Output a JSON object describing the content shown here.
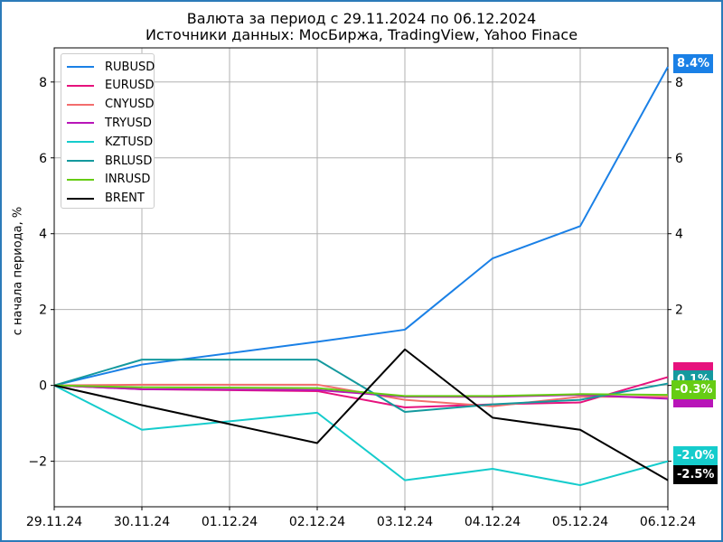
{
  "title_line1": "Валюта за период с 29.11.2024 по 06.12.2024",
  "title_line2": "Источники данных: МосБиржа, TradingView, Yahoo Finace",
  "ylabel": "с начала периода, %",
  "chart_data": {
    "type": "line",
    "title": "Валюта за период с 29.11.2024 по 06.12.2024",
    "subtitle": "Источники данных: МосБиржа, TradingView, Yahoo Finace",
    "ylabel": "с начала периода, %",
    "categories": [
      "29.11.24",
      "30.11.24",
      "01.12.24",
      "02.12.24",
      "03.12.24",
      "04.12.24",
      "05.12.24",
      "06.12.24"
    ],
    "ylim": [
      -3.2,
      8.9
    ],
    "yticks": [
      -2,
      0,
      2,
      4,
      6,
      8
    ],
    "ytick_labels": [
      "−2",
      "0",
      "2",
      "4",
      "6",
      "8"
    ],
    "grid": true,
    "legend_position": "top-left",
    "series": [
      {
        "name": "RUBUSD",
        "color": "#1a80e6",
        "values": [
          0,
          0.55,
          null,
          1.15,
          1.47,
          3.35,
          4.2,
          8.4
        ]
      },
      {
        "name": "EURUSD",
        "color": "#e6127d",
        "values": [
          0,
          -0.1,
          null,
          -0.15,
          -0.58,
          -0.5,
          -0.45,
          0.22
        ]
      },
      {
        "name": "CNYUSD",
        "color": "#f36d6d",
        "values": [
          0,
          0.02,
          null,
          0.02,
          -0.38,
          -0.55,
          -0.3,
          -0.3
        ]
      },
      {
        "name": "TRYUSD",
        "color": "#b815b8",
        "values": [
          0,
          -0.1,
          null,
          -0.12,
          -0.3,
          -0.3,
          -0.25,
          -0.35
        ]
      },
      {
        "name": "KZTUSD",
        "color": "#15cccc",
        "values": [
          0,
          -1.17,
          null,
          -0.72,
          -2.5,
          -2.2,
          -2.63,
          -2.0
        ]
      },
      {
        "name": "BRLUSD",
        "color": "#14999e",
        "values": [
          0,
          0.68,
          null,
          0.68,
          -0.7,
          -0.5,
          -0.38,
          0.05
        ]
      },
      {
        "name": "INRUSD",
        "color": "#66cc14",
        "values": [
          0,
          -0.05,
          null,
          -0.07,
          -0.28,
          -0.28,
          -0.23,
          -0.25
        ]
      },
      {
        "name": "BRENT",
        "color": "#000000",
        "values": [
          0,
          -0.52,
          null,
          -1.52,
          0.95,
          -0.85,
          -1.17,
          -2.5
        ]
      }
    ],
    "badges": [
      {
        "label": "8.4%",
        "color": "#1a80e6",
        "value": 8.4
      },
      {
        "label": "0.1%",
        "color": "#14999e",
        "value": 0.1
      },
      {
        "label": "-0.3%",
        "color": "#66cc14",
        "value": -0.3
      },
      {
        "label": "-2.0%",
        "color": "#15cccc",
        "value": -2.0
      },
      {
        "label": "-2.5%",
        "color": "#000000",
        "value": -2.5
      }
    ]
  }
}
